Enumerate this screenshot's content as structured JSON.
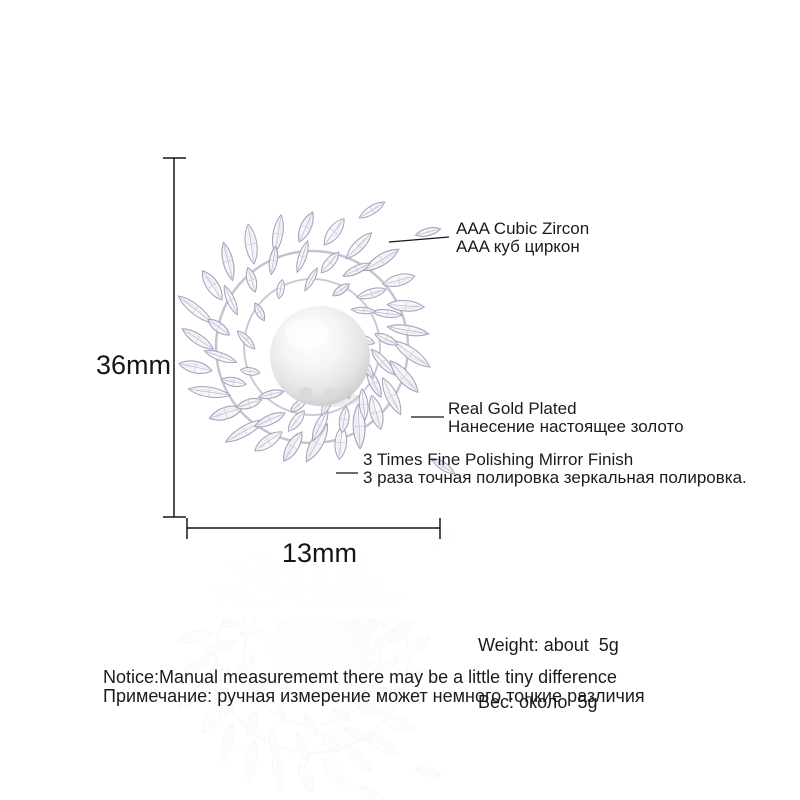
{
  "figure": {
    "description": "pearl and cubic zirconia wreath brooch product diagram",
    "pearl_color": "#f1f1f2",
    "metal_color": "#c6c6d6",
    "line_color": "#161616"
  },
  "dimensions": {
    "height": {
      "label": "36mm"
    },
    "width": {
      "label": "13mm"
    }
  },
  "callouts": {
    "zircon": {
      "en": "AAA Cubic Zircon",
      "ru": "AAA куб циркон"
    },
    "plating": {
      "en": "Real Gold Plated",
      "ru": "Нанесение настоящее золото"
    },
    "polishing": {
      "en": "3 Times Fine Polishing Mirror Finish",
      "ru": "3 раза точная полировка зеркальная полировка."
    },
    "weight": {
      "en": "Weight: about  5g",
      "ru": "Вес: около  5g"
    },
    "notice": {
      "en": "Notice:Manual measurememt there may be a little tiny difference",
      "ru": "Примечание: ручная измерение может немного тонкие различия"
    }
  }
}
